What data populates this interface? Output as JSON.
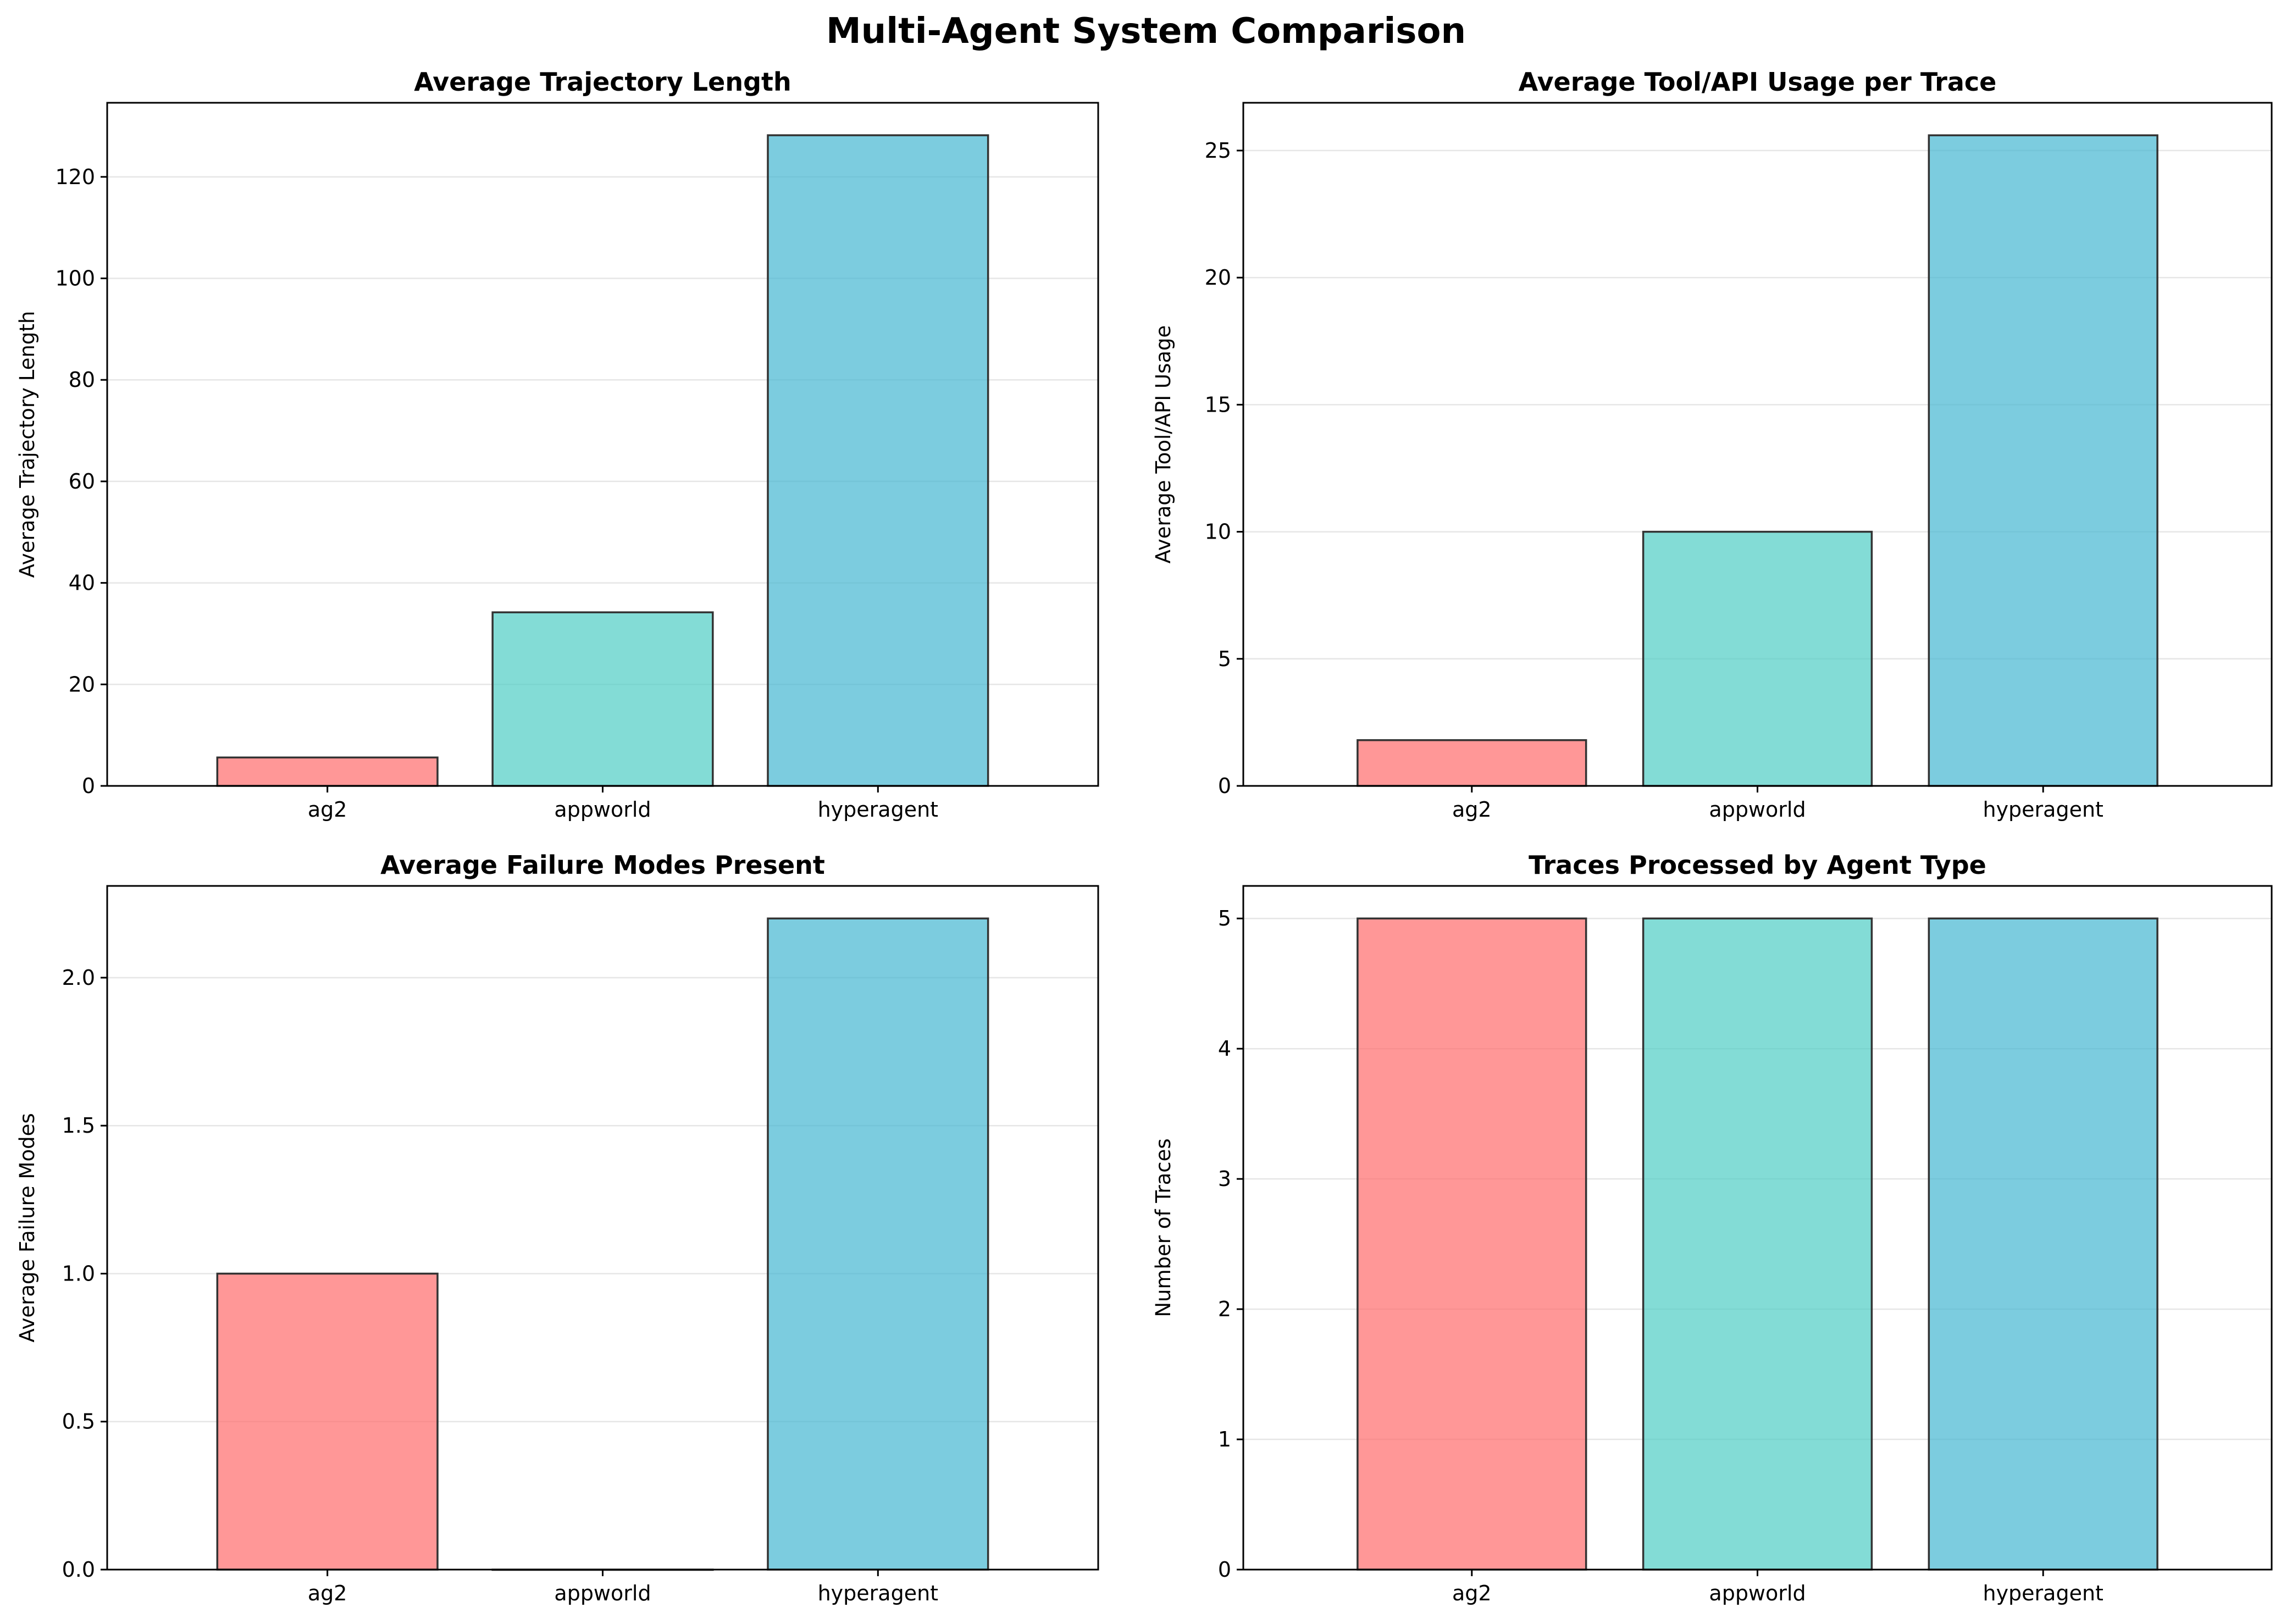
{
  "figure": {
    "title": "Multi-Agent System Comparison"
  },
  "colors": [
    "#ff6b6b",
    "#4ecdc4",
    "#45b7d1"
  ],
  "chart_data": [
    {
      "type": "bar",
      "title": "Average Trajectory Length",
      "xlabel": "",
      "ylabel": "Average Trajectory Length",
      "categories": [
        "ag2",
        "appworld",
        "hyperagent"
      ],
      "values": [
        5.6,
        34.2,
        128.2
      ],
      "ylim": [
        0,
        134.6
      ],
      "yticks": [
        0,
        20,
        40,
        60,
        80,
        100,
        120
      ],
      "ytick_labels": [
        "0",
        "20",
        "40",
        "60",
        "80",
        "100",
        "120"
      ],
      "grid": "y"
    },
    {
      "type": "bar",
      "title": "Average Tool/API Usage per Trace",
      "xlabel": "",
      "ylabel": "Average Tool/API Usage",
      "categories": [
        "ag2",
        "appworld",
        "hyperagent"
      ],
      "values": [
        1.8,
        10.0,
        25.6
      ],
      "ylim": [
        0,
        26.88
      ],
      "yticks": [
        0,
        5,
        10,
        15,
        20,
        25
      ],
      "ytick_labels": [
        "0",
        "5",
        "10",
        "15",
        "20",
        "25"
      ],
      "grid": "y"
    },
    {
      "type": "bar",
      "title": "Average Failure Modes Present",
      "xlabel": "",
      "ylabel": "Average Failure Modes",
      "categories": [
        "ag2",
        "appworld",
        "hyperagent"
      ],
      "values": [
        1.0,
        0.0,
        2.2
      ],
      "ylim": [
        0,
        2.31
      ],
      "yticks": [
        0,
        0.5,
        1.0,
        1.5,
        2.0
      ],
      "ytick_labels": [
        "0.0",
        "0.5",
        "1.0",
        "1.5",
        "2.0"
      ],
      "grid": "y"
    },
    {
      "type": "bar",
      "title": "Traces Processed by Agent Type",
      "xlabel": "",
      "ylabel": "Number of Traces",
      "categories": [
        "ag2",
        "appworld",
        "hyperagent"
      ],
      "values": [
        5,
        5,
        5
      ],
      "ylim": [
        0,
        5.25
      ],
      "yticks": [
        0,
        1,
        2,
        3,
        4,
        5
      ],
      "ytick_labels": [
        "0",
        "1",
        "2",
        "3",
        "4",
        "5"
      ],
      "grid": "y"
    }
  ]
}
